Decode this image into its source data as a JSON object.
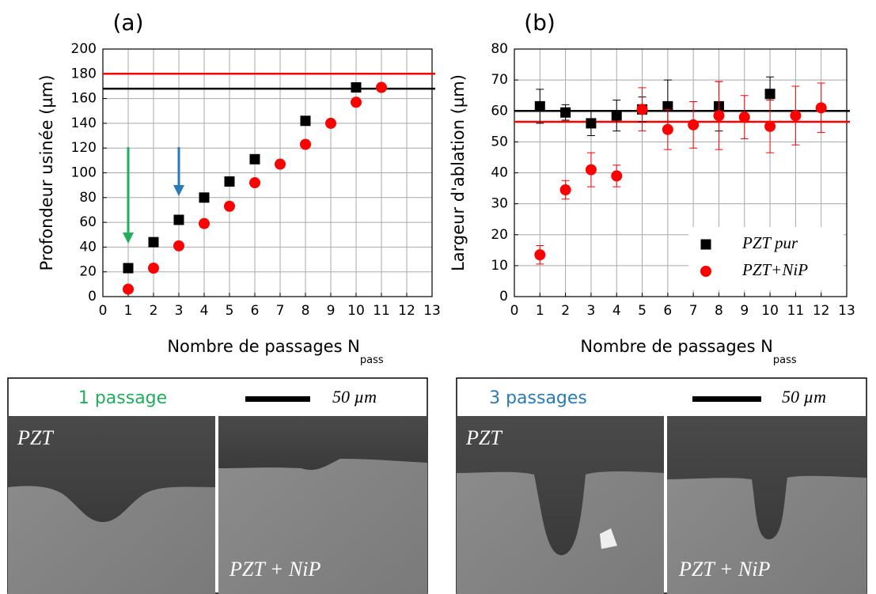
{
  "chart_data": [
    {
      "type": "scatter",
      "title": "(a)",
      "xlabel": "Nombre de passages N",
      "xlabel_subscript": "pass",
      "ylabel": "Profondeur usinée (µm)",
      "xlim": [
        0,
        13
      ],
      "xticks": [
        0,
        1,
        2,
        3,
        4,
        5,
        6,
        7,
        8,
        9,
        10,
        11,
        12,
        13
      ],
      "ylim": [
        0,
        200
      ],
      "yticks": [
        0,
        20,
        40,
        60,
        80,
        100,
        120,
        140,
        160,
        180,
        200
      ],
      "grid": true,
      "series": [
        {
          "color": "#000000",
          "marker": "square",
          "x": [
            1,
            2,
            3,
            4,
            5,
            6,
            8,
            10
          ],
          "values": [
            23,
            44,
            62,
            80,
            93,
            111,
            142,
            169
          ]
        },
        {
          "color": "#ff0000",
          "marker": "circle",
          "x": [
            1,
            2,
            3,
            4,
            5,
            6,
            7,
            8,
            9,
            10,
            11
          ],
          "values": [
            6,
            23,
            41,
            59,
            73,
            92,
            107,
            123,
            140,
            157,
            169
          ]
        }
      ],
      "hlines": [
        {
          "value": 180,
          "color": "#ff0000"
        },
        {
          "value": 168,
          "color": "#000000"
        }
      ]
    },
    {
      "type": "scatter",
      "title": "(b)",
      "xlabel": "Nombre de passages N",
      "xlabel_subscript": "pass",
      "ylabel": "Largeur d'ablation (µm)",
      "xlim": [
        0,
        13
      ],
      "xticks": [
        0,
        1,
        2,
        3,
        4,
        5,
        6,
        7,
        8,
        9,
        10,
        11,
        12,
        13
      ],
      "ylim": [
        0,
        80
      ],
      "yticks": [
        0,
        10,
        20,
        30,
        40,
        50,
        60,
        70,
        80
      ],
      "grid": true,
      "legend": "lower right",
      "series": [
        {
          "name": "PZT pur",
          "color": "#000000",
          "marker": "square",
          "x": [
            1,
            2,
            3,
            4,
            5,
            6,
            8,
            10
          ],
          "values": [
            61.5,
            59.5,
            56,
            58.5,
            60.5,
            61.5,
            61.5,
            65.5
          ],
          "errors": [
            5.5,
            2.5,
            4,
            5,
            4,
            8.5,
            8,
            5.5
          ]
        },
        {
          "name": "PZT+NiP",
          "color": "#ff0000",
          "marker": "circle",
          "x": [
            1,
            2,
            3,
            4,
            5,
            6,
            7,
            8,
            9,
            10,
            11,
            12
          ],
          "values": [
            13.5,
            34.5,
            41,
            39,
            60.5,
            54,
            55.5,
            58.5,
            58,
            55,
            58.5,
            61
          ],
          "errors": [
            3,
            3,
            5.5,
            3.5,
            7,
            6.5,
            7.5,
            11,
            7,
            8.5,
            9.5,
            8
          ]
        }
      ],
      "hlines": [
        {
          "value": 60,
          "color": "#000000"
        },
        {
          "value": 56.5,
          "color": "#ff0000"
        }
      ]
    }
  ],
  "micrographs": [
    {
      "title": "1 passage",
      "title_color": "#1fae5a",
      "scale": "50 µm",
      "labels": [
        "PZT",
        "PZT + NiP"
      ]
    },
    {
      "title": "3 passages",
      "title_color": "#2a7ab8",
      "scale": "50 µm",
      "labels": [
        "PZT",
        "PZT + NiP"
      ]
    }
  ]
}
